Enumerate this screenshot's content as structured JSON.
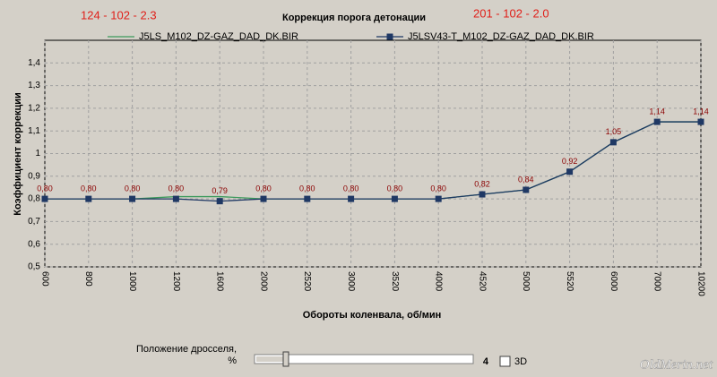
{
  "chart_data": {
    "type": "line",
    "title": "Коррекция порога детонации",
    "annotations": [
      "124 - 102 - 2.3",
      "201 - 102 - 2.0"
    ],
    "x_label": "Обороты коленвала, об/мин",
    "y_label": "Коэффициент коррекции",
    "categories": [
      "600",
      "800",
      "1000",
      "1200",
      "1600",
      "2000",
      "2520",
      "3000",
      "3520",
      "4000",
      "4520",
      "5000",
      "5520",
      "6000",
      "7000",
      "10200"
    ],
    "series": [
      {
        "name": "J5LS_M102_DZ-GAZ_DAD_DK.BIR",
        "color": "#3c9a5c",
        "marker": false,
        "values": [
          0.8,
          0.8,
          0.8,
          0.81,
          0.81,
          0.8,
          0.8,
          0.8,
          0.8,
          0.8,
          0.82,
          0.84,
          0.92,
          1.05,
          1.14,
          1.14
        ]
      },
      {
        "name": "J5LSV43-T_M102_DZ-GAZ_DAD_DK.BIR",
        "color": "#1f3864",
        "marker": true,
        "values": [
          0.8,
          0.8,
          0.8,
          0.8,
          0.79,
          0.8,
          0.8,
          0.8,
          0.8,
          0.8,
          0.82,
          0.84,
          0.92,
          1.05,
          1.14,
          1.14
        ],
        "value_labels": [
          "0,80",
          "0,80",
          "0,80",
          "0,80",
          "0,79",
          "0,80",
          "0,80",
          "0,80",
          "0,80",
          "0,80",
          "0,82",
          "0,84",
          "0,92",
          "1,05",
          "1,14",
          "1,14"
        ]
      }
    ],
    "ylim": [
      0.5,
      1.5
    ],
    "yticks": [
      {
        "value": 0.5,
        "label": "0,5"
      },
      {
        "value": 0.6,
        "label": "0,6"
      },
      {
        "value": 0.7,
        "label": "0,7"
      },
      {
        "value": 0.8,
        "label": "0,8"
      },
      {
        "value": 0.9,
        "label": "0,9"
      },
      1,
      {
        "value": 1.1,
        "label": "1,1"
      },
      {
        "value": 1.2,
        "label": "1,2"
      },
      {
        "value": 1.3,
        "label": "1,3"
      },
      {
        "value": 1.4,
        "label": "1,4"
      }
    ],
    "grid": true
  },
  "controls": {
    "throttle_label": "Положение дросселя,",
    "throttle_unit": "%",
    "throttle_value": "4",
    "checkbox_label": "3D",
    "watermark": "OldMerin.net"
  }
}
